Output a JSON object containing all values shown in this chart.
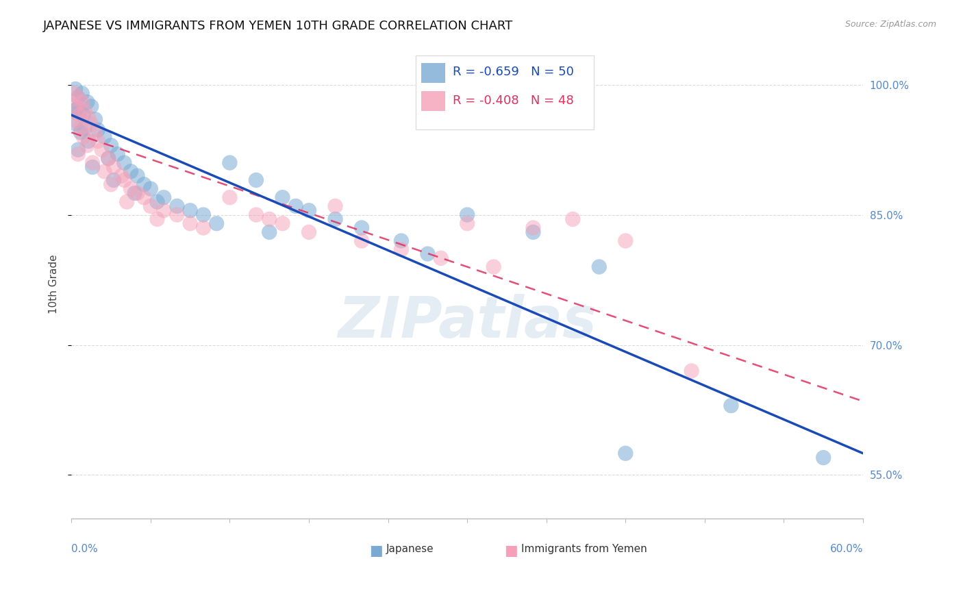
{
  "title": "JAPANESE VS IMMIGRANTS FROM YEMEN 10TH GRADE CORRELATION CHART",
  "source": "Source: ZipAtlas.com",
  "ylabel": "10th Grade",
  "xlim": [
    0.0,
    60.0
  ],
  "ylim": [
    50.0,
    104.0
  ],
  "y_ticks": [
    55.0,
    70.0,
    85.0,
    100.0
  ],
  "y_tick_labels": [
    "55.0%",
    "70.0%",
    "85.0%",
    "100.0%"
  ],
  "blue_scatter": [
    [
      0.3,
      99.5
    ],
    [
      0.8,
      99.0
    ],
    [
      0.5,
      98.5
    ],
    [
      1.2,
      98.0
    ],
    [
      0.2,
      97.0
    ],
    [
      1.5,
      97.5
    ],
    [
      0.4,
      97.2
    ],
    [
      0.6,
      96.8
    ],
    [
      0.9,
      96.5
    ],
    [
      1.8,
      96.0
    ],
    [
      0.3,
      95.5
    ],
    [
      1.0,
      95.0
    ],
    [
      2.0,
      94.8
    ],
    [
      0.7,
      94.5
    ],
    [
      2.5,
      94.0
    ],
    [
      1.3,
      93.5
    ],
    [
      3.0,
      93.0
    ],
    [
      0.5,
      92.5
    ],
    [
      3.5,
      92.0
    ],
    [
      2.8,
      91.5
    ],
    [
      4.0,
      91.0
    ],
    [
      1.6,
      90.5
    ],
    [
      4.5,
      90.0
    ],
    [
      5.0,
      89.5
    ],
    [
      3.2,
      89.0
    ],
    [
      5.5,
      88.5
    ],
    [
      6.0,
      88.0
    ],
    [
      4.8,
      87.5
    ],
    [
      7.0,
      87.0
    ],
    [
      6.5,
      86.5
    ],
    [
      8.0,
      86.0
    ],
    [
      9.0,
      85.5
    ],
    [
      10.0,
      85.0
    ],
    [
      12.0,
      91.0
    ],
    [
      11.0,
      84.0
    ],
    [
      14.0,
      89.0
    ],
    [
      15.0,
      83.0
    ],
    [
      16.0,
      87.0
    ],
    [
      17.0,
      86.0
    ],
    [
      18.0,
      85.5
    ],
    [
      20.0,
      84.5
    ],
    [
      22.0,
      83.5
    ],
    [
      25.0,
      82.0
    ],
    [
      27.0,
      80.5
    ],
    [
      30.0,
      85.0
    ],
    [
      35.0,
      83.0
    ],
    [
      40.0,
      79.0
    ],
    [
      42.0,
      57.5
    ],
    [
      50.0,
      63.0
    ],
    [
      57.0,
      57.0
    ]
  ],
  "pink_scatter": [
    [
      0.2,
      99.0
    ],
    [
      0.5,
      98.5
    ],
    [
      0.8,
      98.0
    ],
    [
      0.3,
      97.5
    ],
    [
      1.0,
      97.0
    ],
    [
      0.6,
      96.5
    ],
    [
      1.3,
      96.2
    ],
    [
      0.4,
      95.8
    ],
    [
      1.5,
      95.5
    ],
    [
      0.7,
      95.0
    ],
    [
      1.8,
      94.5
    ],
    [
      0.9,
      94.0
    ],
    [
      2.0,
      93.5
    ],
    [
      1.2,
      93.0
    ],
    [
      2.3,
      92.5
    ],
    [
      0.5,
      92.0
    ],
    [
      2.8,
      91.5
    ],
    [
      1.6,
      91.0
    ],
    [
      3.2,
      90.5
    ],
    [
      2.5,
      90.0
    ],
    [
      3.8,
      89.5
    ],
    [
      4.0,
      89.0
    ],
    [
      3.0,
      88.5
    ],
    [
      4.5,
      88.0
    ],
    [
      5.0,
      87.5
    ],
    [
      5.5,
      87.0
    ],
    [
      4.2,
      86.5
    ],
    [
      6.0,
      86.0
    ],
    [
      7.0,
      85.5
    ],
    [
      8.0,
      85.0
    ],
    [
      6.5,
      84.5
    ],
    [
      9.0,
      84.0
    ],
    [
      10.0,
      83.5
    ],
    [
      12.0,
      87.0
    ],
    [
      14.0,
      85.0
    ],
    [
      15.0,
      84.5
    ],
    [
      16.0,
      84.0
    ],
    [
      18.0,
      83.0
    ],
    [
      20.0,
      86.0
    ],
    [
      22.0,
      82.0
    ],
    [
      25.0,
      81.0
    ],
    [
      28.0,
      80.0
    ],
    [
      30.0,
      84.0
    ],
    [
      32.0,
      79.0
    ],
    [
      35.0,
      83.5
    ],
    [
      38.0,
      84.5
    ],
    [
      42.0,
      82.0
    ],
    [
      47.0,
      67.0
    ]
  ],
  "blue_line_x": [
    0.0,
    60.0
  ],
  "blue_line_y": [
    96.5,
    57.5
  ],
  "pink_line_x": [
    0.0,
    60.0
  ],
  "pink_line_y": [
    94.5,
    63.5
  ],
  "scatter_color_blue": "#7aaad4",
  "scatter_color_pink": "#f5a0b8",
  "line_color_blue": "#1a4ab8",
  "line_color_pink": "#e03060",
  "background_color": "#ffffff",
  "grid_color": "#cccccc",
  "watermark": "ZIPatlas",
  "title_fontsize": 13,
  "source_fontsize": 9,
  "tick_fontsize": 11,
  "legend_r_blue": "R = -0.659",
  "legend_n_blue": "N = 50",
  "legend_r_pink": "R = -0.408",
  "legend_n_pink": "N = 48"
}
